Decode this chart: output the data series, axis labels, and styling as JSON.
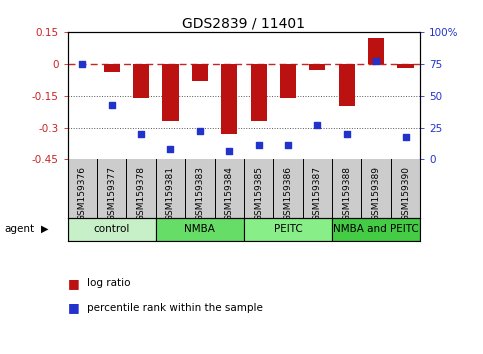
{
  "title": "GDS2839 / 11401",
  "samples": [
    "GSM159376",
    "GSM159377",
    "GSM159378",
    "GSM159381",
    "GSM159383",
    "GSM159384",
    "GSM159385",
    "GSM159386",
    "GSM159387",
    "GSM159388",
    "GSM159389",
    "GSM159390"
  ],
  "log_ratio": [
    0.0,
    -0.04,
    -0.16,
    -0.27,
    -0.08,
    -0.33,
    -0.27,
    -0.16,
    -0.03,
    -0.2,
    0.12,
    -0.02
  ],
  "percentile_rank": [
    75,
    43,
    20,
    8,
    22,
    7,
    11,
    11,
    27,
    20,
    77,
    18
  ],
  "groups": [
    {
      "label": "control",
      "start": 0,
      "end": 3,
      "color": "#c8f0c8"
    },
    {
      "label": "NMBA",
      "start": 3,
      "end": 6,
      "color": "#66dd66"
    },
    {
      "label": "PEITC",
      "start": 6,
      "end": 9,
      "color": "#88ee88"
    },
    {
      "label": "NMBA and PEITC",
      "start": 9,
      "end": 12,
      "color": "#44cc44"
    }
  ],
  "ylim_left": [
    -0.45,
    0.15
  ],
  "ylim_right": [
    0,
    100
  ],
  "bar_color": "#bb1111",
  "dot_color": "#2233cc",
  "hline_color": "#cc2222",
  "dotline_color": "#555555",
  "bar_width": 0.55,
  "group_colors": [
    "#c8f0c8",
    "#66dd66",
    "#88ee88",
    "#44cc44"
  ],
  "sample_bg": "#cccccc",
  "left_yticks": [
    0.15,
    0.0,
    -0.15,
    -0.3,
    -0.45
  ],
  "left_yticklabels": [
    "0.15",
    "0",
    "-0.15",
    "-0.3",
    "-0.45"
  ],
  "right_yticks": [
    0,
    25,
    50,
    75,
    100
  ],
  "right_yticklabels": [
    "0",
    "25",
    "50",
    "75",
    "100%"
  ]
}
